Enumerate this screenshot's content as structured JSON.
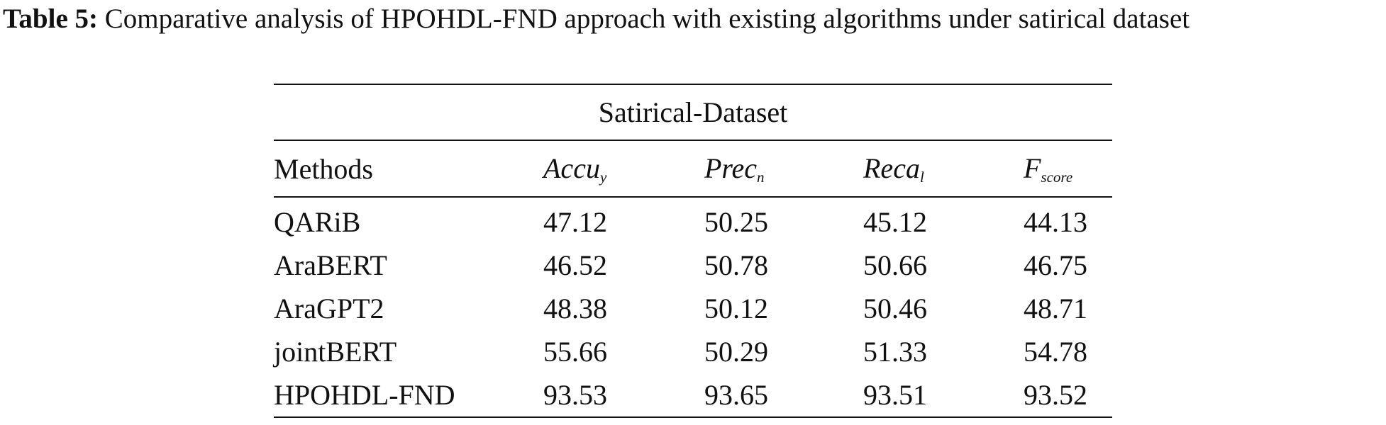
{
  "caption": {
    "label": "Table 5:",
    "text": "Comparative analysis of HPOHDL-FND approach with existing algorithms under satirical dataset"
  },
  "table": {
    "group_header": "Satirical-Dataset",
    "columns": [
      {
        "base": "Methods",
        "sub": ""
      },
      {
        "base": "Accu",
        "sub": "y"
      },
      {
        "base": "Prec",
        "sub": "n"
      },
      {
        "base": "Reca",
        "sub": "l"
      },
      {
        "base": "F",
        "sub": "score"
      }
    ],
    "rows": [
      {
        "method": "QARiB",
        "values": [
          "47.12",
          "50.25",
          "45.12",
          "44.13"
        ]
      },
      {
        "method": "AraBERT",
        "values": [
          "46.52",
          "50.78",
          "50.66",
          "46.75"
        ]
      },
      {
        "method": "AraGPT2",
        "values": [
          "48.38",
          "50.12",
          "50.46",
          "48.71"
        ]
      },
      {
        "method": "jointBERT",
        "values": [
          "55.66",
          "50.29",
          "51.33",
          "54.78"
        ]
      },
      {
        "method": "HPOHDL-FND",
        "values": [
          "93.53",
          "93.65",
          "93.51",
          "93.52"
        ]
      }
    ]
  }
}
